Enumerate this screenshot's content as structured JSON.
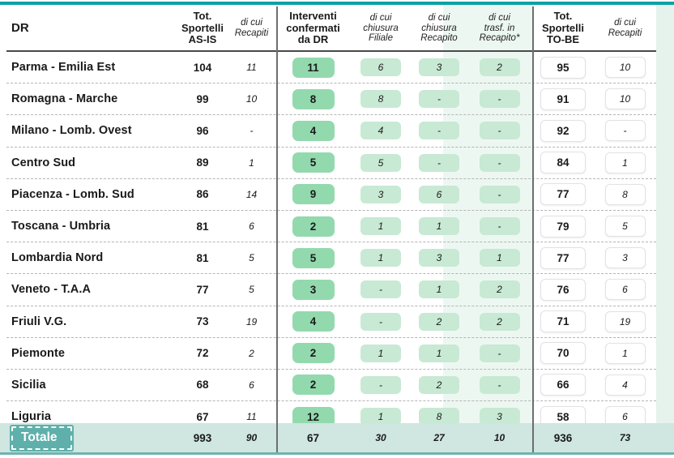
{
  "colors": {
    "accent_teal": "#0ba1a6",
    "chip_dark_green": "#93d9ae",
    "chip_light_green": "#c8e9d4",
    "column_highlight": "#edf7f1",
    "totale_row_bg": "#cfe6e1",
    "totale_badge_bg": "#5fb0ab"
  },
  "table": {
    "headers": {
      "dr": "DR",
      "asis_total": "Tot.\nSportelli\nAS-IS",
      "asis_recapiti": "di cui\nRecapiti",
      "interventi": "Interventi\nconfermati\nda DR",
      "chiusura_filiale": "di cui\nchiusura\nFiliale",
      "chiusura_recapito": "di cui\nchiusura\nRecapito",
      "trasf_recapito": "di cui\ntrasf. in\nRecapito*",
      "tobe_total": "Tot.\nSportelli\nTO-BE",
      "tobe_recapiti": "di cui\nRecapiti"
    },
    "rows": [
      {
        "label": "Parma - Emilia Est",
        "asis": "104",
        "asis_rec": "11",
        "int": "11",
        "fil": "6",
        "rec": "3",
        "trasf": "2",
        "tobe": "95",
        "tobe_rec": "10"
      },
      {
        "label": "Romagna - Marche",
        "asis": "99",
        "asis_rec": "10",
        "int": "8",
        "fil": "8",
        "rec": "-",
        "trasf": "-",
        "tobe": "91",
        "tobe_rec": "10"
      },
      {
        "label": "Milano - Lomb. Ovest",
        "asis": "96",
        "asis_rec": "-",
        "int": "4",
        "fil": "4",
        "rec": "-",
        "trasf": "-",
        "tobe": "92",
        "tobe_rec": "-"
      },
      {
        "label": "Centro Sud",
        "asis": "89",
        "asis_rec": "1",
        "int": "5",
        "fil": "5",
        "rec": "-",
        "trasf": "-",
        "tobe": "84",
        "tobe_rec": "1"
      },
      {
        "label": "Piacenza - Lomb. Sud",
        "asis": "86",
        "asis_rec": "14",
        "int": "9",
        "fil": "3",
        "rec": "6",
        "trasf": "-",
        "tobe": "77",
        "tobe_rec": "8"
      },
      {
        "label": "Toscana - Umbria",
        "asis": "81",
        "asis_rec": "6",
        "int": "2",
        "fil": "1",
        "rec": "1",
        "trasf": "-",
        "tobe": "79",
        "tobe_rec": "5"
      },
      {
        "label": "Lombardia Nord",
        "asis": "81",
        "asis_rec": "5",
        "int": "5",
        "fil": "1",
        "rec": "3",
        "trasf": "1",
        "tobe": "77",
        "tobe_rec": "3"
      },
      {
        "label": "Veneto - T.A.A",
        "asis": "77",
        "asis_rec": "5",
        "int": "3",
        "fil": "-",
        "rec": "1",
        "trasf": "2",
        "tobe": "76",
        "tobe_rec": "6"
      },
      {
        "label": "Friuli V.G.",
        "asis": "73",
        "asis_rec": "19",
        "int": "4",
        "fil": "-",
        "rec": "2",
        "trasf": "2",
        "tobe": "71",
        "tobe_rec": "19"
      },
      {
        "label": "Piemonte",
        "asis": "72",
        "asis_rec": "2",
        "int": "2",
        "fil": "1",
        "rec": "1",
        "trasf": "-",
        "tobe": "70",
        "tobe_rec": "1"
      },
      {
        "label": "Sicilia",
        "asis": "68",
        "asis_rec": "6",
        "int": "2",
        "fil": "-",
        "rec": "2",
        "trasf": "-",
        "tobe": "66",
        "tobe_rec": "4"
      },
      {
        "label": "Liguria",
        "asis": "67",
        "asis_rec": "11",
        "int": "12",
        "fil": "1",
        "rec": "8",
        "trasf": "3",
        "tobe": "58",
        "tobe_rec": "6"
      }
    ],
    "total": {
      "label": "Totale",
      "asis": "993",
      "asis_rec": "90",
      "int": "67",
      "fil": "30",
      "rec": "27",
      "trasf": "10",
      "tobe": "936",
      "tobe_rec": "73"
    }
  },
  "chart_data": {
    "type": "table",
    "title": "",
    "columns": [
      "DR",
      "Tot. Sportelli AS-IS",
      "di cui Recapiti",
      "Interventi confermati da DR",
      "di cui chiusura Filiale",
      "di cui chiusura Recapito",
      "di cui trasf. in Recapito*",
      "Tot. Sportelli TO-BE",
      "di cui Recapiti"
    ],
    "rows": [
      [
        "Parma - Emilia Est",
        104,
        11,
        11,
        6,
        3,
        2,
        95,
        10
      ],
      [
        "Romagna - Marche",
        99,
        10,
        8,
        8,
        null,
        null,
        91,
        10
      ],
      [
        "Milano - Lomb. Ovest",
        96,
        null,
        4,
        4,
        null,
        null,
        92,
        null
      ],
      [
        "Centro Sud",
        89,
        1,
        5,
        5,
        null,
        null,
        84,
        1
      ],
      [
        "Piacenza - Lomb. Sud",
        86,
        14,
        9,
        3,
        6,
        null,
        77,
        8
      ],
      [
        "Toscana - Umbria",
        81,
        6,
        2,
        1,
        1,
        null,
        79,
        5
      ],
      [
        "Lombardia Nord",
        81,
        5,
        5,
        1,
        3,
        1,
        77,
        3
      ],
      [
        "Veneto - T.A.A",
        77,
        5,
        3,
        null,
        1,
        2,
        76,
        6
      ],
      [
        "Friuli V.G.",
        73,
        19,
        4,
        null,
        2,
        2,
        71,
        19
      ],
      [
        "Piemonte",
        72,
        2,
        2,
        1,
        1,
        null,
        70,
        1
      ],
      [
        "Sicilia",
        68,
        6,
        2,
        null,
        2,
        null,
        66,
        4
      ],
      [
        "Liguria",
        67,
        11,
        12,
        1,
        8,
        3,
        58,
        6
      ],
      [
        "Totale",
        993,
        90,
        67,
        30,
        27,
        10,
        936,
        73
      ]
    ]
  }
}
